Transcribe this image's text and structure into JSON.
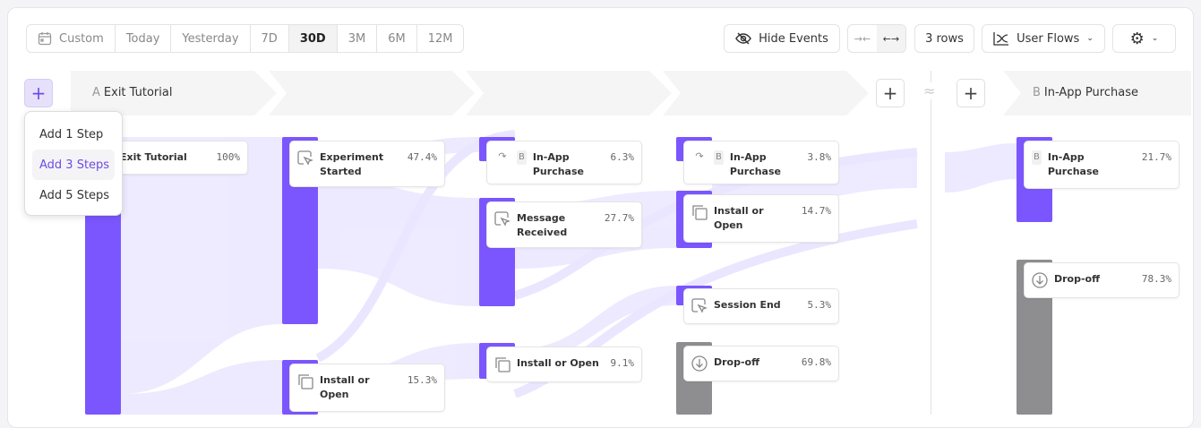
{
  "toolbar": {
    "date_ranges": [
      {
        "label": "Custom",
        "icon": "calendar-icon"
      },
      {
        "label": "Today"
      },
      {
        "label": "Yesterday"
      },
      {
        "label": "7D"
      },
      {
        "label": "30D",
        "selected": true
      },
      {
        "label": "3M"
      },
      {
        "label": "6M"
      },
      {
        "label": "12M"
      }
    ],
    "hide_events": "Hide Events",
    "rows": "3 rows",
    "view": "User Flows"
  },
  "steps": {
    "a_letter": "A",
    "a_name": "Exit Tutorial",
    "b_letter": "B",
    "b_name": "In-App Purchase"
  },
  "menu": {
    "items": [
      "Add 1 Step",
      "Add 3 Steps",
      "Add 5 Steps"
    ],
    "highlighted": "Add 3 Steps"
  },
  "nodes": [
    {
      "name": "Exit Tutorial",
      "pct": "100%"
    },
    {
      "name": "Experiment Started",
      "pct": "47.4%"
    },
    {
      "name": "Install or Open",
      "pct": "15.3%"
    },
    {
      "tag": "B",
      "name": "In-App Purchase",
      "pct": "6.3%"
    },
    {
      "name": "Message Received",
      "pct": "27.7%"
    },
    {
      "name": "Install or Open",
      "pct": "9.1%"
    },
    {
      "tag": "B",
      "name": "In-App Purchase",
      "pct": "3.8%"
    },
    {
      "name": "Install or Open",
      "pct": "14.7%"
    },
    {
      "name": "Session End",
      "pct": "5.3%"
    },
    {
      "name": "Drop-off",
      "pct": "69.8%"
    },
    {
      "tag": "B",
      "name": "In-App Purchase",
      "pct": "21.7%"
    },
    {
      "name": "Drop-off",
      "pct": "78.3%"
    }
  ],
  "colors": {
    "accent": "#7b56ff",
    "dropoff": "#8e8e90",
    "flow": "#ebe6ff"
  }
}
